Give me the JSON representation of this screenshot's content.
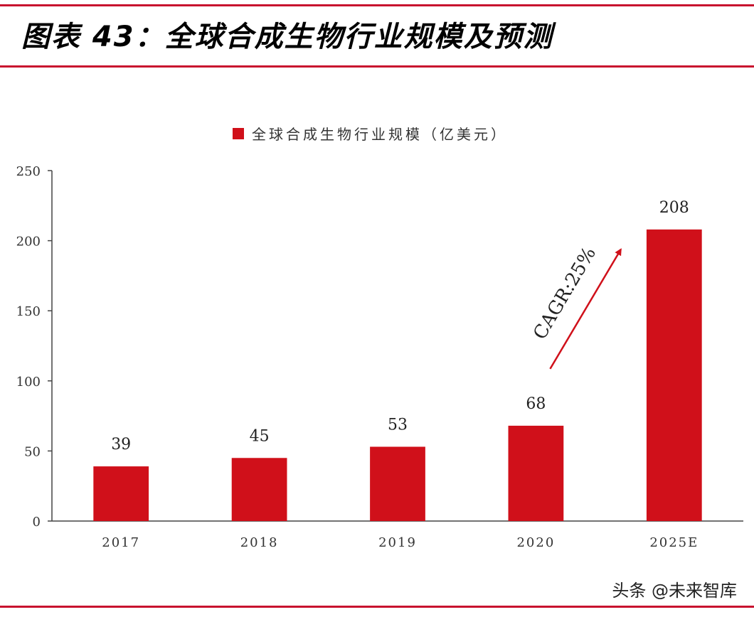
{
  "figure": {
    "title": "图表 43：全球合成生物行业规模及预测",
    "rule_color": "#c8102e"
  },
  "chart_data": {
    "type": "bar",
    "categories": [
      "2017",
      "2018",
      "2019",
      "2020",
      "2025E"
    ],
    "series": [
      {
        "name": "全球合成生物行业规模（亿美元）",
        "values": [
          39,
          45,
          53,
          68,
          208
        ],
        "color": "#d0101a"
      }
    ],
    "ylim": [
      0,
      250
    ],
    "yticks": [
      0,
      50,
      100,
      150,
      200,
      250
    ],
    "xlabel": "",
    "ylabel": "",
    "legend": "top-center",
    "grid": false,
    "data_labels": true,
    "annotation": {
      "text": "CAGR:25%",
      "from": "2020",
      "to": "2025E",
      "color": "#d0101a"
    }
  },
  "watermark": "头条 @未来智库"
}
